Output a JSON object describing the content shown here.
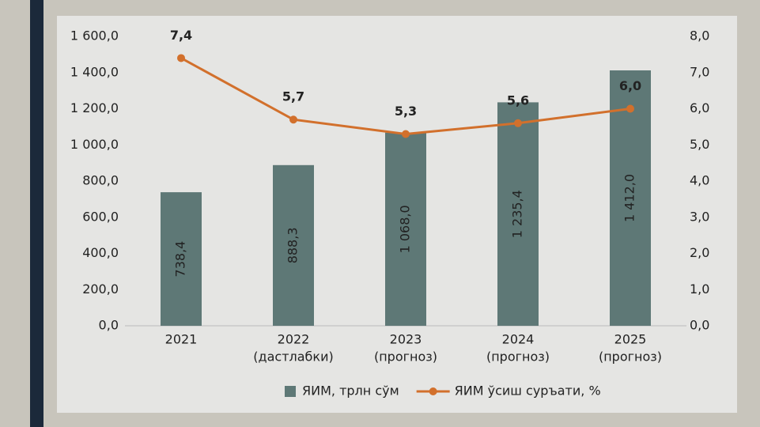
{
  "chart_data": {
    "type": "bar-line",
    "categories": [
      [
        "2021"
      ],
      [
        "2022",
        "(дастлабки)"
      ],
      [
        "2023",
        "(прогноз)"
      ],
      [
        "2024",
        "(прогноз)"
      ],
      [
        "2025",
        "(прогноз)"
      ]
    ],
    "series": [
      {
        "name": "ЯИМ, трлн сўм",
        "type": "bar",
        "color": "#5e7876",
        "values": [
          738.4,
          888.3,
          1068.0,
          1235.4,
          1412.0
        ],
        "value_labels": [
          "738,4",
          "888,3",
          "1 068,0",
          "1 235,4",
          "1 412,0"
        ]
      },
      {
        "name": "ЯИМ ўсиш суръати, %",
        "type": "line",
        "axis": "y2",
        "color": "#d2702c",
        "values": [
          7.4,
          5.7,
          5.3,
          5.6,
          6.0
        ],
        "value_labels": [
          "7,4",
          "5,7",
          "5,3",
          "5,6",
          "6,0"
        ]
      }
    ],
    "ylim": [
      0,
      1600
    ],
    "yticks": [
      {
        "value": 0,
        "label": "0,0"
      },
      {
        "value": 200,
        "label": "200,0"
      },
      {
        "value": 400,
        "label": "400,0"
      },
      {
        "value": 600,
        "label": "600,0"
      },
      {
        "value": 800,
        "label": "800,0"
      },
      {
        "value": 1000,
        "label": "1 000,0"
      },
      {
        "value": 1200,
        "label": "1 200,0"
      },
      {
        "value": 1400,
        "label": "1 400,0"
      },
      {
        "value": 1600,
        "label": "1 600,0"
      }
    ],
    "y2lim": [
      0,
      8
    ],
    "y2ticks": [
      {
        "value": 0,
        "label": "0,0"
      },
      {
        "value": 1,
        "label": "1,0"
      },
      {
        "value": 2,
        "label": "2,0"
      },
      {
        "value": 3,
        "label": "3,0"
      },
      {
        "value": 4,
        "label": "4,0"
      },
      {
        "value": 5,
        "label": "5,0"
      },
      {
        "value": 6,
        "label": "6,0"
      },
      {
        "value": 7,
        "label": "7,0"
      },
      {
        "value": 8,
        "label": "8,0"
      }
    ],
    "grid": false
  }
}
